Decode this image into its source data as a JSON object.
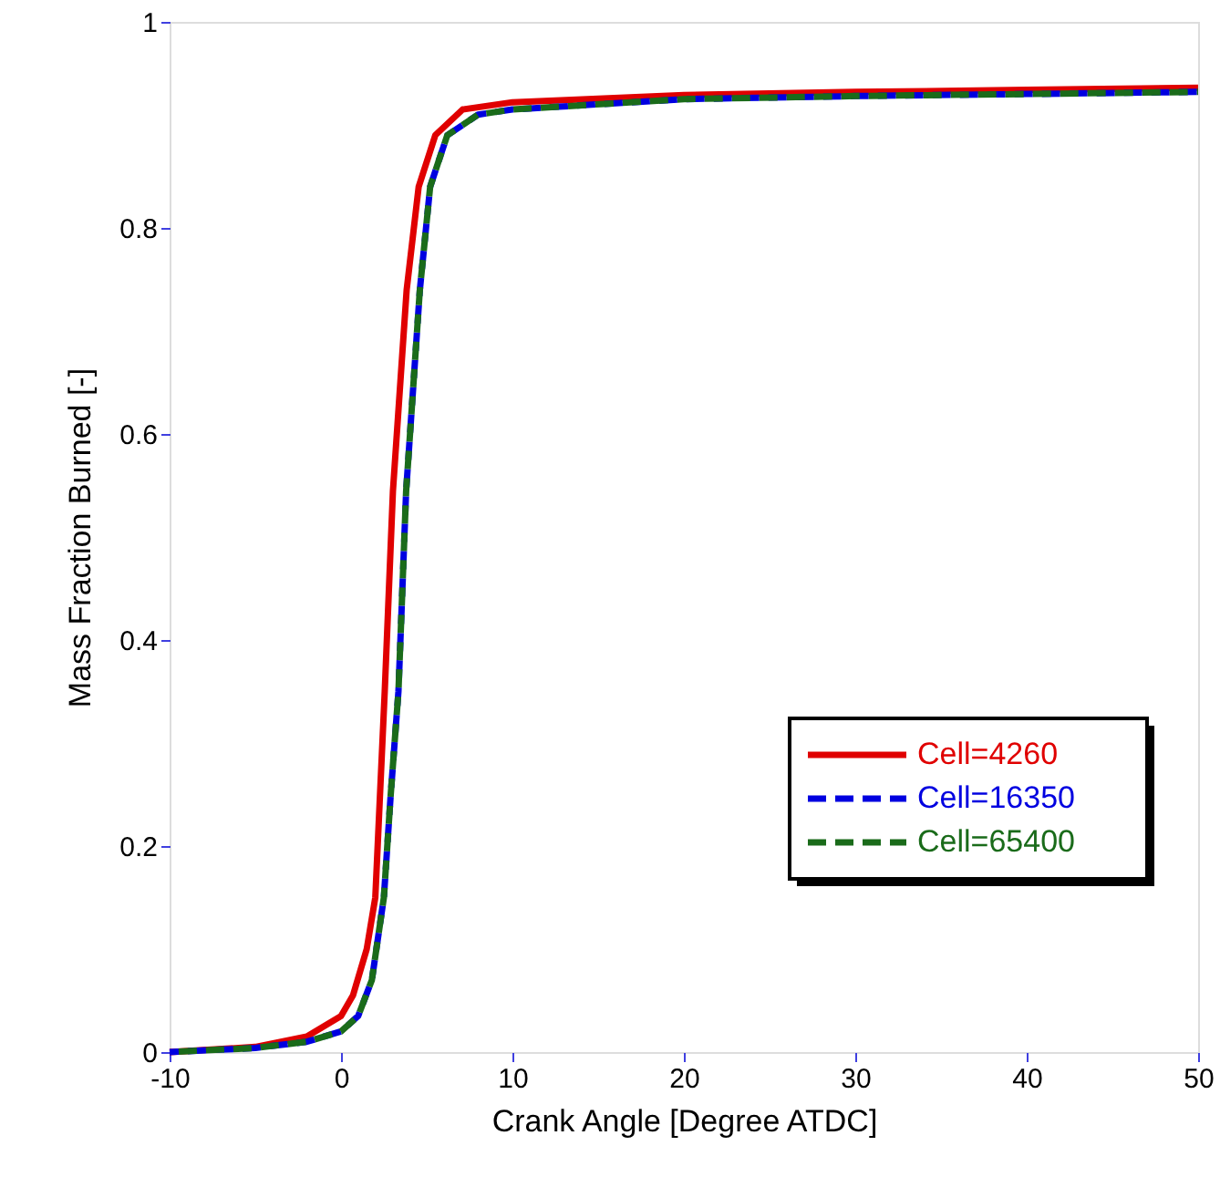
{
  "chart_data": {
    "type": "line",
    "xlabel": "Crank Angle [Degree ATDC]",
    "ylabel": "Mass Fraction Burned [-]",
    "xlim": [
      -10,
      50
    ],
    "xticks": [
      -10,
      0,
      10,
      20,
      30,
      40,
      50
    ],
    "ylim": [
      0,
      1
    ],
    "yticks": [
      0,
      0.2,
      0.4,
      0.6,
      0.8,
      1
    ],
    "grid": false,
    "legend": "bottom right",
    "marker": "none",
    "series": [
      {
        "name": "Cell=4260",
        "color": "#e00000",
        "line_style": "solid",
        "x": [
          -10,
          -5,
          -2,
          0,
          0.7,
          1.5,
          2.0,
          2.55,
          3.03,
          3.83,
          4.53,
          5.5,
          7.1,
          10,
          20,
          30,
          40,
          50
        ],
        "values": [
          0,
          0.005,
          0.015,
          0.035,
          0.055,
          0.1,
          0.15,
          0.35,
          0.545,
          0.74,
          0.84,
          0.89,
          0.915,
          0.922,
          0.929,
          0.932,
          0.934,
          0.936
        ]
      },
      {
        "name": "Cell=16350",
        "color": "#0000e0",
        "line_style": "dashed",
        "x": [
          -10,
          -5,
          -2,
          0,
          1,
          1.8,
          2.5,
          2.9,
          3.35,
          3.8,
          4.6,
          5.2,
          6.2,
          8,
          10,
          20,
          30,
          40,
          50
        ],
        "values": [
          0,
          0.004,
          0.01,
          0.02,
          0.035,
          0.07,
          0.15,
          0.25,
          0.35,
          0.545,
          0.74,
          0.84,
          0.89,
          0.91,
          0.915,
          0.925,
          0.928,
          0.93,
          0.932
        ]
      },
      {
        "name": "Cell=65400",
        "color": "#1a6b1a",
        "line_style": "dashed",
        "x": [
          -10,
          -5,
          -2,
          0,
          1,
          1.8,
          2.5,
          2.9,
          3.35,
          3.8,
          4.6,
          5.2,
          6.2,
          8,
          10,
          20,
          30,
          40,
          50
        ],
        "values": [
          0,
          0.004,
          0.01,
          0.02,
          0.035,
          0.07,
          0.15,
          0.25,
          0.35,
          0.545,
          0.74,
          0.84,
          0.89,
          0.91,
          0.915,
          0.925,
          0.928,
          0.93,
          0.932
        ]
      }
    ]
  }
}
